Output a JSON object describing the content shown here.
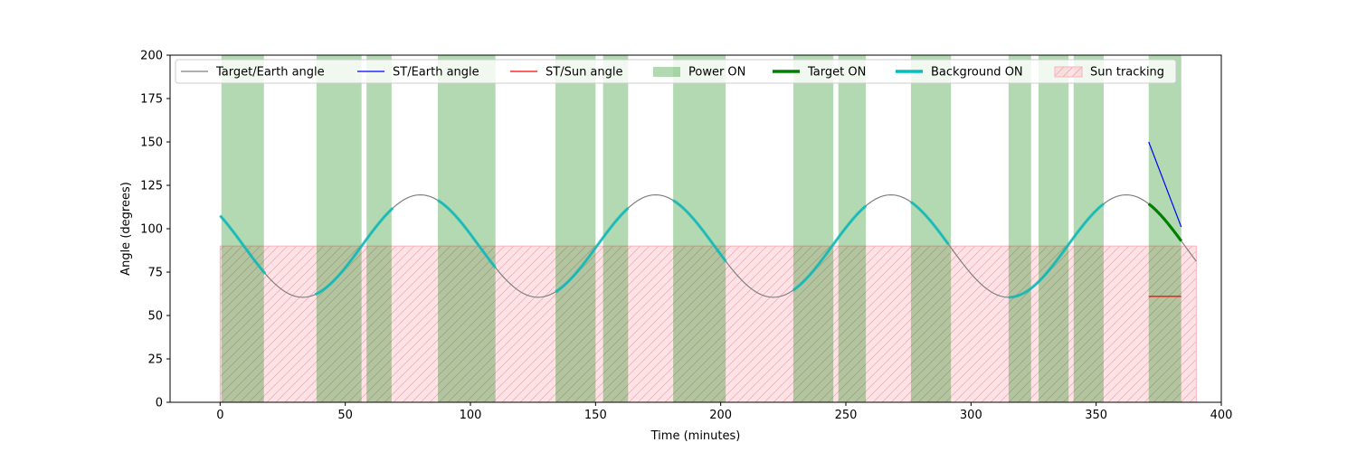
{
  "chart_data": {
    "type": "line",
    "xlabel": "Time (minutes)",
    "ylabel": "Angle (degrees)",
    "xlim": [
      -20,
      400
    ],
    "ylim": [
      0,
      200
    ],
    "xticks": [
      0,
      50,
      100,
      150,
      200,
      250,
      300,
      350,
      400
    ],
    "yticks": [
      0,
      25,
      50,
      75,
      100,
      125,
      150,
      175,
      200
    ],
    "grid": false,
    "legend_placement": "top",
    "colors": {
      "target_earth": "#808080",
      "st_earth": "#0000ff",
      "st_sun": "#ff0000",
      "power_on": "#008000",
      "target_on": "#008000",
      "background_on": "#00bfbf",
      "sun_tracking": "#ffb6c1"
    },
    "legend": [
      {
        "label": "Target/Earth angle",
        "kind": "line",
        "key": "target_earth"
      },
      {
        "label": "ST/Earth angle",
        "kind": "line",
        "key": "st_earth"
      },
      {
        "label": "ST/Sun angle",
        "kind": "line",
        "key": "st_sun"
      },
      {
        "label": "Power ON",
        "kind": "patch",
        "key": "power_on"
      },
      {
        "label": "Target ON",
        "kind": "thick",
        "key": "target_on"
      },
      {
        "label": "Background ON",
        "kind": "thick",
        "key": "background_on"
      },
      {
        "label": "Sun tracking",
        "kind": "hatch",
        "key": "sun_tracking"
      }
    ],
    "target_earth": {
      "x_range": [
        0,
        390
      ],
      "mean": 90,
      "amplitude": 29.5,
      "period_minutes": 94,
      "minimum_at_minutes": 33,
      "samples_every_minutes": 1
    },
    "st_earth_angle": {
      "x": [
        371,
        384
      ],
      "y": [
        150,
        101
      ]
    },
    "st_sun_angle": {
      "x": [
        371,
        384
      ],
      "y": [
        61,
        61
      ]
    },
    "power_on_intervals": [
      [
        0.5,
        17.5
      ],
      [
        38.5,
        56.5
      ],
      [
        58.5,
        68.5
      ],
      [
        87,
        110
      ],
      [
        134,
        150
      ],
      [
        153,
        163
      ],
      [
        181,
        202
      ],
      [
        229,
        245
      ],
      [
        247,
        258
      ],
      [
        276,
        292
      ],
      [
        315,
        324
      ],
      [
        327,
        339
      ],
      [
        341,
        353
      ],
      [
        371,
        384
      ]
    ],
    "background_on_intervals": [
      [
        0,
        18
      ],
      [
        38,
        69
      ],
      [
        87,
        110
      ],
      [
        134,
        163
      ],
      [
        181,
        202
      ],
      [
        229,
        258
      ],
      [
        276,
        291
      ],
      [
        315,
        353
      ]
    ],
    "target_on_intervals": [
      [
        371,
        384
      ]
    ],
    "sun_tracking": {
      "x_range": [
        0,
        390
      ],
      "y_range": [
        0,
        90
      ]
    }
  }
}
